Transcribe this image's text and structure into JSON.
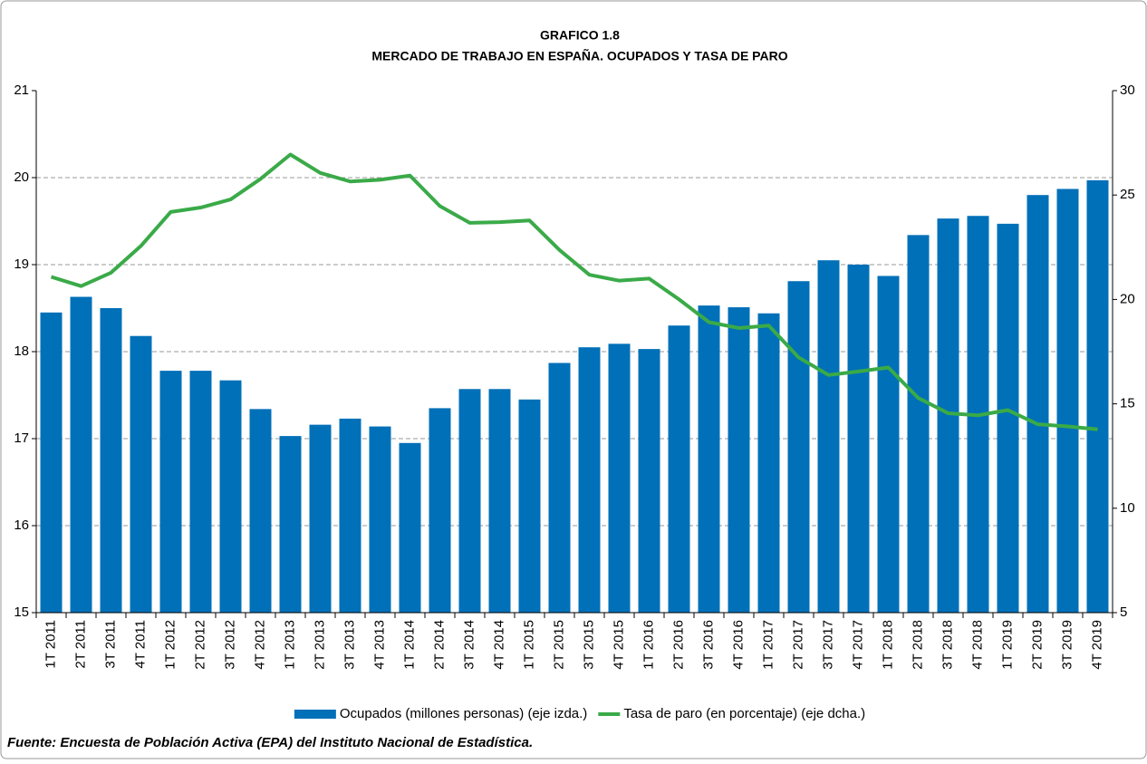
{
  "chart_data": {
    "type": "bar_line",
    "title": "GRAFICO 1.8",
    "subtitle": "MERCADO DE TRABAJO EN ESPAÑA. OCUPADOS Y TASA DE PARO",
    "source": "Fuente: Encuesta de Población Activa (EPA) del Instituto Nacional de Estadística.",
    "categories": [
      "1T 2011",
      "2T 2011",
      "3T 2011",
      "4T 2011",
      "1T 2012",
      "2T 2012",
      "3T 2012",
      "4T 2012",
      "1T 2013",
      "2T 2013",
      "3T 2013",
      "4T 2013",
      "1T 2014",
      "2T 2014",
      "3T 2014",
      "4T 2014",
      "1T 2015",
      "2T 2015",
      "3T 2015",
      "4T 2015",
      "1T 2016",
      "2T 2016",
      "3T 2016",
      "4T 2016",
      "1T 2017",
      "2T 2017",
      "3T 2017",
      "4T 2017",
      "1T 2018",
      "2T 2018",
      "3T 2018",
      "4T 2018",
      "1T 2019",
      "2T 2019",
      "3T 2019",
      "4T 2019"
    ],
    "series": [
      {
        "name": "Ocupados (millones personas) (eje izda.)",
        "type": "bar",
        "color": "#0070b8",
        "values": [
          18.45,
          18.63,
          18.5,
          18.18,
          17.78,
          17.78,
          17.67,
          17.34,
          17.03,
          17.16,
          17.23,
          17.14,
          16.95,
          17.35,
          17.57,
          17.57,
          17.45,
          17.87,
          18.05,
          18.09,
          18.03,
          18.3,
          18.53,
          18.51,
          18.44,
          18.81,
          19.05,
          19.0,
          18.87,
          19.34,
          19.53,
          19.56,
          19.47,
          19.8,
          19.87,
          19.97
        ]
      },
      {
        "name": "Tasa de paro (en porcentaje) (eje dcha.)",
        "type": "line",
        "axis": "y2",
        "color": "#3aaa48",
        "values": [
          21.08,
          20.64,
          21.28,
          22.56,
          24.19,
          24.4,
          24.79,
          25.77,
          26.94,
          26.06,
          25.65,
          25.73,
          25.93,
          24.47,
          23.67,
          23.7,
          23.78,
          22.37,
          21.18,
          20.9,
          21.0,
          20.0,
          18.91,
          18.63,
          18.75,
          17.22,
          16.38,
          16.55,
          16.74,
          15.28,
          14.55,
          14.45,
          14.7,
          14.02,
          13.92,
          13.78
        ]
      }
    ],
    "ylim": [
      15,
      21
    ],
    "yticks": [
      15,
      16,
      17,
      18,
      19,
      20,
      21
    ],
    "y2lim": [
      5,
      30
    ],
    "y2ticks": [
      5,
      10,
      15,
      20,
      25,
      30
    ],
    "grid": true
  }
}
